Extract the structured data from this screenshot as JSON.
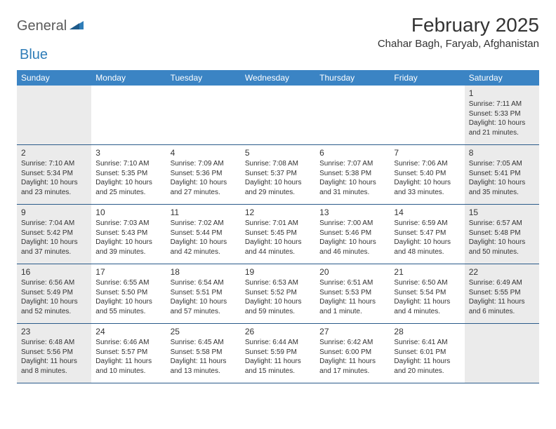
{
  "logo": {
    "part1": "General",
    "part2": "Blue"
  },
  "title": "February 2025",
  "location": "Chahar Bagh, Faryab, Afghanistan",
  "colors": {
    "header_bg": "#3b84c4",
    "header_fg": "#ffffff",
    "shaded_bg": "#ebebeb",
    "row_border": "#2a5a8a",
    "logo_gray": "#5a5a5a",
    "logo_blue": "#2f7db8"
  },
  "weekdays": [
    "Sunday",
    "Monday",
    "Tuesday",
    "Wednesday",
    "Thursday",
    "Friday",
    "Saturday"
  ],
  "shaded_cols": [
    0,
    6
  ],
  "weeks": [
    [
      {
        "day": "",
        "sunrise": "",
        "sunset": "",
        "daylight": ""
      },
      {
        "day": "",
        "sunrise": "",
        "sunset": "",
        "daylight": ""
      },
      {
        "day": "",
        "sunrise": "",
        "sunset": "",
        "daylight": ""
      },
      {
        "day": "",
        "sunrise": "",
        "sunset": "",
        "daylight": ""
      },
      {
        "day": "",
        "sunrise": "",
        "sunset": "",
        "daylight": ""
      },
      {
        "day": "",
        "sunrise": "",
        "sunset": "",
        "daylight": ""
      },
      {
        "day": "1",
        "sunrise": "Sunrise: 7:11 AM",
        "sunset": "Sunset: 5:33 PM",
        "daylight": "Daylight: 10 hours and 21 minutes."
      }
    ],
    [
      {
        "day": "2",
        "sunrise": "Sunrise: 7:10 AM",
        "sunset": "Sunset: 5:34 PM",
        "daylight": "Daylight: 10 hours and 23 minutes."
      },
      {
        "day": "3",
        "sunrise": "Sunrise: 7:10 AM",
        "sunset": "Sunset: 5:35 PM",
        "daylight": "Daylight: 10 hours and 25 minutes."
      },
      {
        "day": "4",
        "sunrise": "Sunrise: 7:09 AM",
        "sunset": "Sunset: 5:36 PM",
        "daylight": "Daylight: 10 hours and 27 minutes."
      },
      {
        "day": "5",
        "sunrise": "Sunrise: 7:08 AM",
        "sunset": "Sunset: 5:37 PM",
        "daylight": "Daylight: 10 hours and 29 minutes."
      },
      {
        "day": "6",
        "sunrise": "Sunrise: 7:07 AM",
        "sunset": "Sunset: 5:38 PM",
        "daylight": "Daylight: 10 hours and 31 minutes."
      },
      {
        "day": "7",
        "sunrise": "Sunrise: 7:06 AM",
        "sunset": "Sunset: 5:40 PM",
        "daylight": "Daylight: 10 hours and 33 minutes."
      },
      {
        "day": "8",
        "sunrise": "Sunrise: 7:05 AM",
        "sunset": "Sunset: 5:41 PM",
        "daylight": "Daylight: 10 hours and 35 minutes."
      }
    ],
    [
      {
        "day": "9",
        "sunrise": "Sunrise: 7:04 AM",
        "sunset": "Sunset: 5:42 PM",
        "daylight": "Daylight: 10 hours and 37 minutes."
      },
      {
        "day": "10",
        "sunrise": "Sunrise: 7:03 AM",
        "sunset": "Sunset: 5:43 PM",
        "daylight": "Daylight: 10 hours and 39 minutes."
      },
      {
        "day": "11",
        "sunrise": "Sunrise: 7:02 AM",
        "sunset": "Sunset: 5:44 PM",
        "daylight": "Daylight: 10 hours and 42 minutes."
      },
      {
        "day": "12",
        "sunrise": "Sunrise: 7:01 AM",
        "sunset": "Sunset: 5:45 PM",
        "daylight": "Daylight: 10 hours and 44 minutes."
      },
      {
        "day": "13",
        "sunrise": "Sunrise: 7:00 AM",
        "sunset": "Sunset: 5:46 PM",
        "daylight": "Daylight: 10 hours and 46 minutes."
      },
      {
        "day": "14",
        "sunrise": "Sunrise: 6:59 AM",
        "sunset": "Sunset: 5:47 PM",
        "daylight": "Daylight: 10 hours and 48 minutes."
      },
      {
        "day": "15",
        "sunrise": "Sunrise: 6:57 AM",
        "sunset": "Sunset: 5:48 PM",
        "daylight": "Daylight: 10 hours and 50 minutes."
      }
    ],
    [
      {
        "day": "16",
        "sunrise": "Sunrise: 6:56 AM",
        "sunset": "Sunset: 5:49 PM",
        "daylight": "Daylight: 10 hours and 52 minutes."
      },
      {
        "day": "17",
        "sunrise": "Sunrise: 6:55 AM",
        "sunset": "Sunset: 5:50 PM",
        "daylight": "Daylight: 10 hours and 55 minutes."
      },
      {
        "day": "18",
        "sunrise": "Sunrise: 6:54 AM",
        "sunset": "Sunset: 5:51 PM",
        "daylight": "Daylight: 10 hours and 57 minutes."
      },
      {
        "day": "19",
        "sunrise": "Sunrise: 6:53 AM",
        "sunset": "Sunset: 5:52 PM",
        "daylight": "Daylight: 10 hours and 59 minutes."
      },
      {
        "day": "20",
        "sunrise": "Sunrise: 6:51 AM",
        "sunset": "Sunset: 5:53 PM",
        "daylight": "Daylight: 11 hours and 1 minute."
      },
      {
        "day": "21",
        "sunrise": "Sunrise: 6:50 AM",
        "sunset": "Sunset: 5:54 PM",
        "daylight": "Daylight: 11 hours and 4 minutes."
      },
      {
        "day": "22",
        "sunrise": "Sunrise: 6:49 AM",
        "sunset": "Sunset: 5:55 PM",
        "daylight": "Daylight: 11 hours and 6 minutes."
      }
    ],
    [
      {
        "day": "23",
        "sunrise": "Sunrise: 6:48 AM",
        "sunset": "Sunset: 5:56 PM",
        "daylight": "Daylight: 11 hours and 8 minutes."
      },
      {
        "day": "24",
        "sunrise": "Sunrise: 6:46 AM",
        "sunset": "Sunset: 5:57 PM",
        "daylight": "Daylight: 11 hours and 10 minutes."
      },
      {
        "day": "25",
        "sunrise": "Sunrise: 6:45 AM",
        "sunset": "Sunset: 5:58 PM",
        "daylight": "Daylight: 11 hours and 13 minutes."
      },
      {
        "day": "26",
        "sunrise": "Sunrise: 6:44 AM",
        "sunset": "Sunset: 5:59 PM",
        "daylight": "Daylight: 11 hours and 15 minutes."
      },
      {
        "day": "27",
        "sunrise": "Sunrise: 6:42 AM",
        "sunset": "Sunset: 6:00 PM",
        "daylight": "Daylight: 11 hours and 17 minutes."
      },
      {
        "day": "28",
        "sunrise": "Sunrise: 6:41 AM",
        "sunset": "Sunset: 6:01 PM",
        "daylight": "Daylight: 11 hours and 20 minutes."
      },
      {
        "day": "",
        "sunrise": "",
        "sunset": "",
        "daylight": ""
      }
    ]
  ]
}
